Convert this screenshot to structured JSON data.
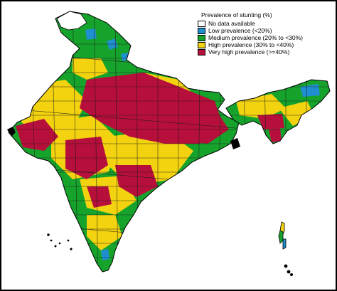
{
  "legend": {
    "title": "Prevalence of stunting (%)",
    "items": [
      {
        "label": "No data available",
        "color": "#ffffff"
      },
      {
        "label": "Low prevalence (<20%)",
        "color": "#1f8fd0"
      },
      {
        "label": "Medium prevalence (20% to <30%)",
        "color": "#16a32c"
      },
      {
        "label": "High prevalence (30% to <40%)",
        "color": "#f3d20f"
      },
      {
        "label": "Very high prevalence (>=40%)",
        "color": "#b70f3b"
      }
    ]
  },
  "colors": {
    "border": "#000000",
    "district_line": "#1a1a1a"
  }
}
